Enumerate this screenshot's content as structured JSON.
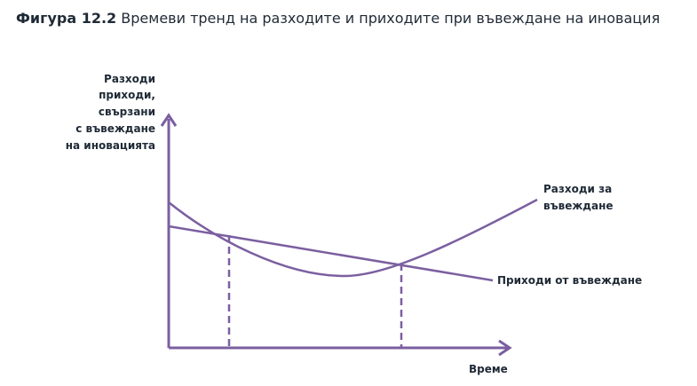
{
  "title": {
    "label": "Фигура 12.2",
    "text": "Времеви тренд на разходите и приходите при въвеждане на иновация"
  },
  "y_axis_label": [
    "Разходи",
    "приходи,",
    "свързани",
    "с въвеждане",
    "на иновацията"
  ],
  "x_axis_label": "Време",
  "curves": {
    "costs": [
      "Разходи за",
      "въвеждане"
    ],
    "revenues": "Приходи от въвеждане"
  }
}
